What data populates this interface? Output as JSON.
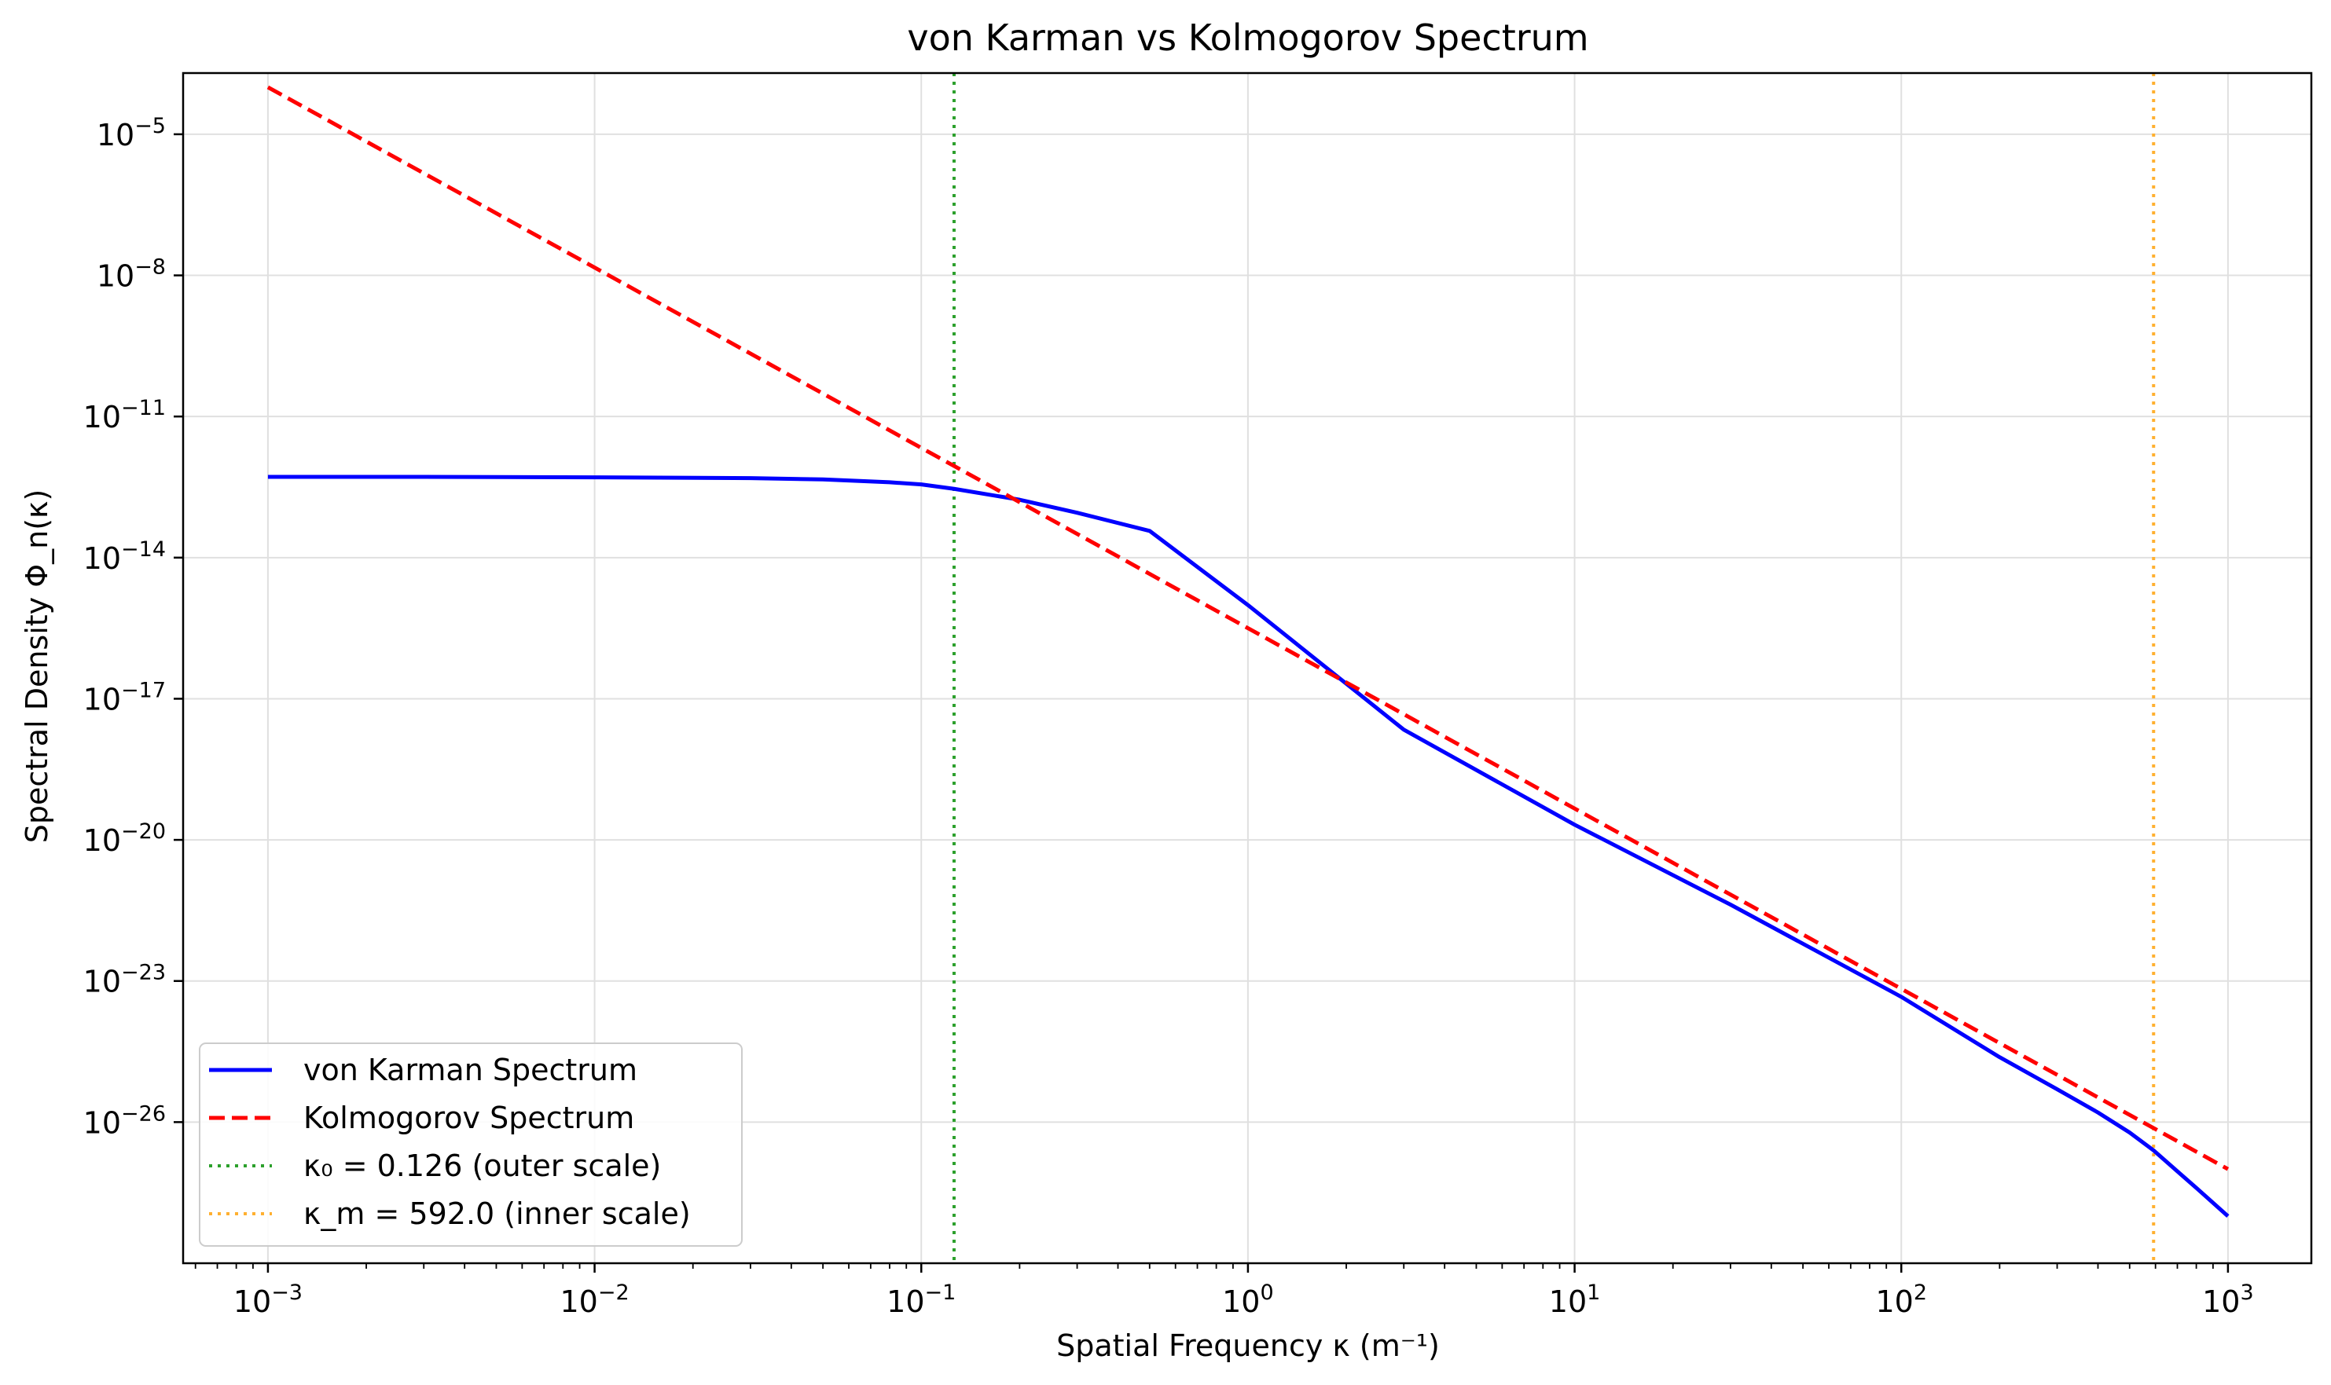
{
  "chart_data": {
    "type": "line",
    "title": "von Karman vs Kolmogorov Spectrum",
    "xlabel": "Spatial Frequency κ (m⁻¹)",
    "ylabel": "Spectral Density Φ_n(κ)",
    "x_scale": "log",
    "y_scale": "log",
    "xlim": [
      0.00055,
      1800
    ],
    "ylim": [
      1e-29,
      0.0002
    ],
    "grid": true,
    "legend_position": "lower-left",
    "x_ticks": [
      {
        "value": 0.001,
        "base": "10",
        "exp": "−3"
      },
      {
        "value": 0.01,
        "base": "10",
        "exp": "−2"
      },
      {
        "value": 0.1,
        "base": "10",
        "exp": "−1"
      },
      {
        "value": 1,
        "base": "10",
        "exp": "0"
      },
      {
        "value": 10,
        "base": "10",
        "exp": "1"
      },
      {
        "value": 100,
        "base": "10",
        "exp": "2"
      },
      {
        "value": 1000,
        "base": "10",
        "exp": "3"
      }
    ],
    "y_ticks": [
      {
        "value": 1e-05,
        "base": "10",
        "exp": "−5"
      },
      {
        "value": 1e-08,
        "base": "10",
        "exp": "−8"
      },
      {
        "value": 1e-11,
        "base": "10",
        "exp": "−11"
      },
      {
        "value": 1e-14,
        "base": "10",
        "exp": "−14"
      },
      {
        "value": 1e-17,
        "base": "10",
        "exp": "−17"
      },
      {
        "value": 1e-20,
        "base": "10",
        "exp": "−20"
      },
      {
        "value": 1e-23,
        "base": "10",
        "exp": "−23"
      },
      {
        "value": 1e-26,
        "base": "10",
        "exp": "−26"
      }
    ],
    "series": [
      {
        "name": "von Karman Spectrum",
        "color": "#0000ff",
        "style": "solid",
        "x": [
          0.001,
          0.003,
          0.01,
          0.03,
          0.05,
          0.08,
          0.1,
          0.126,
          0.2,
          0.3,
          0.5,
          1,
          3,
          10,
          30,
          100,
          200,
          300,
          400,
          500,
          592,
          700,
          800,
          1000
        ],
        "y": [
          5.2e-13,
          5.2e-13,
          5.1e-13,
          4.9e-13,
          4.6e-13,
          4e-13,
          3.6e-13,
          2.9e-13,
          1.7e-13,
          9e-14,
          3.7e-14,
          9.8e-16,
          2.2e-18,
          2.1e-20,
          4.2e-22,
          4.6e-24,
          2.4e-25,
          5e-26,
          1.6e-26,
          6e-27,
          2.5e-27,
          9e-28,
          4e-28,
          1e-28
        ]
      },
      {
        "name": "Kolmogorov Spectrum",
        "color": "#ff0000",
        "style": "dashed",
        "x": [
          0.001,
          1000
        ],
        "y": [
          0.0001,
          1e-27
        ]
      }
    ],
    "reference_lines": [
      {
        "name": "κ₀ = 0.126 (outer scale)",
        "x": 0.126,
        "color": "#2ca02c",
        "style": "dotted"
      },
      {
        "name": "κ_m = 592.0 (inner scale)",
        "x": 592.0,
        "color": "#ffb030",
        "style": "dotted"
      }
    ]
  }
}
